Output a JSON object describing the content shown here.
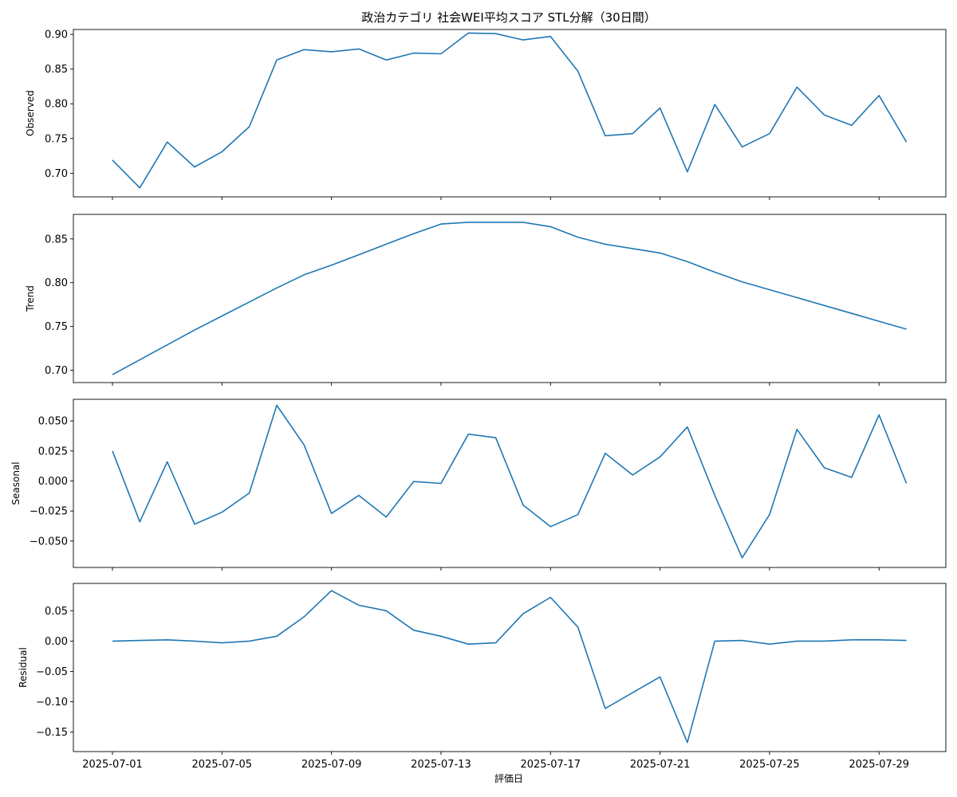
{
  "title": "政治カテゴリ 社会WEI平均スコア STL分解（30日間）",
  "xlabel": "評価日",
  "x_tick_labels": [
    "2025-07-01",
    "2025-07-05",
    "2025-07-09",
    "2025-07-13",
    "2025-07-17",
    "2025-07-21",
    "2025-07-25",
    "2025-07-29"
  ],
  "line_color": "#1f77b4",
  "chart_data": {
    "type": "line",
    "x": [
      "2025-07-01",
      "2025-07-02",
      "2025-07-03",
      "2025-07-04",
      "2025-07-05",
      "2025-07-06",
      "2025-07-07",
      "2025-07-08",
      "2025-07-09",
      "2025-07-10",
      "2025-07-11",
      "2025-07-12",
      "2025-07-13",
      "2025-07-14",
      "2025-07-15",
      "2025-07-16",
      "2025-07-17",
      "2025-07-18",
      "2025-07-19",
      "2025-07-20",
      "2025-07-21",
      "2025-07-22",
      "2025-07-23",
      "2025-07-24",
      "2025-07-25",
      "2025-07-26",
      "2025-07-27",
      "2025-07-28",
      "2025-07-29",
      "2025-07-30"
    ],
    "panels": [
      {
        "name": "Observed",
        "ylabel": "Observed",
        "ylim": [
          0.666,
          0.907
        ],
        "yticks": [
          "0.70",
          "0.75",
          "0.80",
          "0.85",
          "0.90"
        ],
        "values": [
          0.719,
          0.679,
          0.745,
          0.709,
          0.731,
          0.767,
          0.863,
          0.878,
          0.875,
          0.879,
          0.863,
          0.873,
          0.872,
          0.902,
          0.901,
          0.892,
          0.897,
          0.847,
          0.754,
          0.757,
          0.794,
          0.702,
          0.799,
          0.738,
          0.757,
          0.824,
          0.784,
          0.769,
          0.812,
          0.745
        ]
      },
      {
        "name": "Trend",
        "ylabel": "Trend",
        "ylim": [
          0.686,
          0.878
        ],
        "yticks": [
          "0.70",
          "0.75",
          "0.80",
          "0.85"
        ],
        "values": [
          0.695,
          0.712,
          0.729,
          0.746,
          0.762,
          0.778,
          0.794,
          0.809,
          0.82,
          0.832,
          0.844,
          0.856,
          0.867,
          0.869,
          0.869,
          0.869,
          0.864,
          0.852,
          0.844,
          0.839,
          0.834,
          0.824,
          0.812,
          0.801,
          0.792,
          0.783,
          0.774,
          0.765,
          0.756,
          0.747
        ]
      },
      {
        "name": "Seasonal",
        "ylabel": "Seasonal",
        "ylim": [
          -0.072,
          0.068
        ],
        "yticks": [
          "0.050",
          "0.025",
          "0.000",
          "−0.025",
          "−0.050"
        ],
        "values": [
          0.025,
          -0.034,
          0.016,
          -0.036,
          -0.026,
          -0.01,
          0.063,
          0.03,
          -0.027,
          -0.012,
          -0.03,
          -0.0005,
          -0.002,
          0.039,
          0.036,
          -0.02,
          -0.038,
          -0.028,
          0.023,
          0.005,
          0.02,
          0.045,
          -0.012,
          -0.064,
          -0.028,
          0.043,
          0.011,
          0.003,
          0.055,
          -0.002
        ]
      },
      {
        "name": "Residual",
        "ylabel": "Residual",
        "ylim": [
          -0.182,
          0.095
        ],
        "yticks": [
          "0.05",
          "0.00",
          "−0.05",
          "−0.10",
          "−0.15"
        ],
        "values": [
          0.0,
          0.001,
          0.002,
          0.0,
          -0.003,
          0.0,
          0.008,
          0.04,
          0.083,
          0.059,
          0.05,
          0.018,
          0.008,
          -0.005,
          -0.003,
          0.045,
          0.072,
          0.023,
          -0.111,
          -0.085,
          -0.059,
          -0.167,
          0.0,
          0.001,
          -0.005,
          0.0,
          0.0,
          0.002,
          0.002,
          0.001
        ]
      }
    ]
  }
}
